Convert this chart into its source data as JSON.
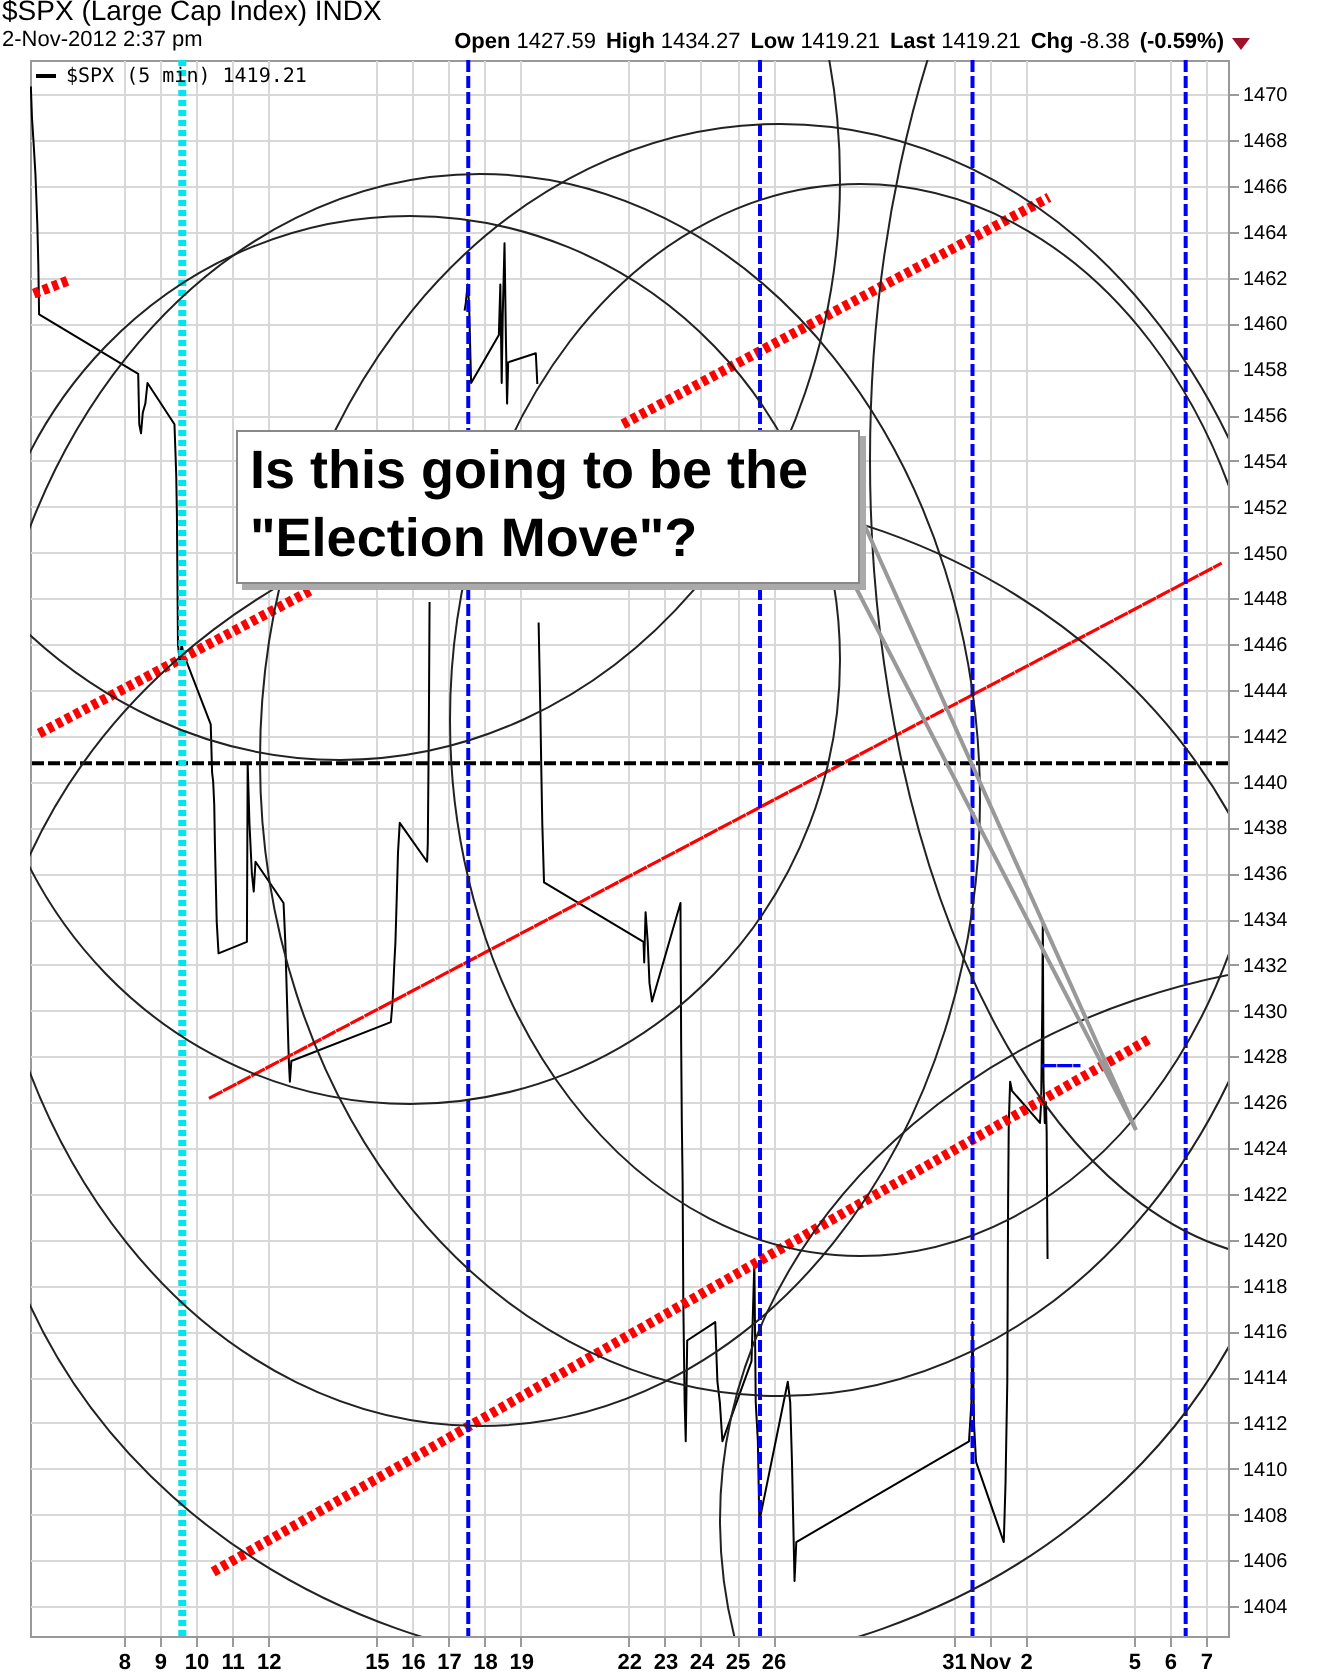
{
  "chart_data": {
    "type": "line",
    "title": "$SPX (Large Cap Index) INDX",
    "subtitle": "2-Nov-2012 2:37 pm",
    "annotations": [
      "Open 1427.59 High 1434.27 Low 1419.21 Last 1419.21 Chg -8.38 (-0.59%)",
      "Is this going to be the \"Election Move\"?"
    ],
    "xlim": [
      "2012-10-05T09:30",
      "2012-11-07T14:42"
    ],
    "xticks": [
      {
        "value": "2012-10-08",
        "label": "8"
      },
      {
        "value": "2012-10-09",
        "label": "9"
      },
      {
        "value": "2012-10-10",
        "label": "10"
      },
      {
        "value": "2012-10-11",
        "label": "11"
      },
      {
        "value": "2012-10-12",
        "label": "12"
      },
      {
        "value": "2012-10-15",
        "label": "15"
      },
      {
        "value": "2012-10-16",
        "label": "16"
      },
      {
        "value": "2012-10-17",
        "label": "17"
      },
      {
        "value": "2012-10-18",
        "label": "18"
      },
      {
        "value": "2012-10-19",
        "label": "19"
      },
      {
        "value": "2012-10-22",
        "label": "22"
      },
      {
        "value": "2012-10-23",
        "label": "23"
      },
      {
        "value": "2012-10-24",
        "label": "24"
      },
      {
        "value": "2012-10-25",
        "label": "25"
      },
      {
        "value": "2012-10-26",
        "label": "26"
      },
      {
        "value": "2012-10-31",
        "label": "31"
      },
      {
        "value": "2012-11-01",
        "label": "Nov"
      },
      {
        "value": "2012-11-02",
        "label": "2"
      },
      {
        "value": "2012-11-05",
        "label": "5"
      },
      {
        "value": "2012-11-06",
        "label": "6"
      },
      {
        "value": "2012-11-07",
        "label": "7"
      }
    ],
    "ylim": [
      1402.7,
      1471.5
    ],
    "yticks": [
      1404,
      1406,
      1408,
      1410,
      1412,
      1414,
      1416,
      1418,
      1420,
      1422,
      1424,
      1426,
      1428,
      1430,
      1432,
      1434,
      1436,
      1438,
      1440,
      1442,
      1444,
      1446,
      1448,
      1450,
      1452,
      1454,
      1456,
      1458,
      1460,
      1462,
      1464,
      1466,
      1468,
      1470
    ],
    "grid": true,
    "legend": "top left",
    "series": [
      {
        "name": "$SPX (5 min) 1419.21",
        "color": "#000000",
        "line_style": "solid",
        "x": [
          "2012-10-05T10:05",
          "2012-10-05T10:48",
          "2012-10-05T11:58",
          "2012-10-05T13:08",
          "2012-10-05T14:23",
          "2012-10-05T15:02",
          "2012-10-05T15:33",
          "2012-10-08T09:30",
          "2012-10-08T10:13",
          "2012-10-08T11:23",
          "2012-10-08T12:33",
          "2012-10-08T14:15",
          "2012-10-08T15:41",
          "2012-10-09T09:38",
          "2012-10-09T10:48",
          "2012-10-09T11:15",
          "2012-10-09T11:58",
          "2012-10-09T13:08",
          "2012-10-09T14:23",
          "2012-10-09T15:33",
          "2012-10-10T09:46",
          "2012-10-10T10:40",
          "2012-10-10T11:23",
          "2012-10-10T12:06",
          "2012-10-10T12:33",
          "2012-10-10T13:44",
          "2012-10-10T14:58",
          "2012-10-11T09:50",
          "2012-10-11T10:21",
          "2012-10-11T11:31",
          "2012-10-11T13:08",
          "2012-10-11T14:23",
          "2012-10-11T15:33",
          "2012-10-12T10:13",
          "2012-10-12T11:23",
          "2012-10-12T12:33",
          "2012-10-12T13:44",
          "2012-10-12T14:26",
          "2012-10-12T15:25",
          "2012-10-15T09:38",
          "2012-10-15T10:48",
          "2012-10-15T11:58",
          "2012-10-15T12:41",
          "2012-10-15T13:40",
          "2012-10-15T14:23",
          "2012-10-15T15:33",
          "2012-10-16T09:46",
          "2012-10-16T10:13",
          "2012-10-16T10:56",
          "2012-10-16T11:23",
          "2012-10-16T14:42",
          "2012-10-17T10:48",
          "2012-10-17T11:31",
          "2012-10-17T12:41",
          "2012-10-17T13:40",
          "2012-10-17T15:02",
          "2012-10-18T09:30",
          "2012-10-18T10:29",
          "2012-10-18T11:23",
          "2012-10-18T12:06",
          "2012-10-18T13:16",
          "2012-10-18T14:15",
          "2012-10-18T14:58",
          "2012-10-18T15:41",
          "2012-10-19T10:05",
          "2012-10-19T11:04",
          "2012-10-19T11:27",
          "2012-10-19T11:58",
          "2012-10-19T13:08",
          "2012-10-19T13:40",
          "2012-10-19T14:23",
          "2012-10-19T15:33",
          "2012-10-22T09:46",
          "2012-10-22T10:13",
          "2012-10-22T11:08",
          "2012-10-22T12:33",
          "2012-10-22T13:44",
          "2012-10-22T15:25",
          "2012-10-23T10:21",
          "2012-10-23T10:48",
          "2012-10-23T11:15",
          "2012-10-23T11:47",
          "2012-10-23T12:14",
          "2012-10-23T13:08",
          "2012-10-23T13:51",
          "2012-10-23T14:50",
          "2012-10-24T09:30",
          "2012-10-24T10:56",
          "2012-10-24T12:33",
          "2012-10-24T14:15",
          "2012-10-25T09:38",
          "2012-10-25T11:31",
          "2012-10-25T12:26",
          "2012-10-25T13:51",
          "2012-10-25T14:50",
          "2012-10-26T09:46",
          "2012-10-26T11:23",
          "2012-10-26T12:33",
          "2012-10-26T14:15",
          "2012-10-26T15:25",
          "2012-10-31T10:21",
          "2012-10-31T11:58",
          "2012-10-31T12:41",
          "2012-10-31T13:40",
          "2012-10-31T15:02",
          "2012-11-01T09:30",
          "2012-11-01T10:40",
          "2012-11-01T11:50",
          "2012-11-01T12:22",
          "2012-11-01T12:49",
          "2012-11-01T13:44",
          "2012-11-01T14:58",
          "2012-11-02T09:35",
          "2012-11-02T10:22",
          "2012-11-02T11:09",
          "2012-11-02T11:28",
          "2012-11-02T11:56",
          "2012-11-02T12:46",
          "2012-11-02T13:33",
          "2012-11-02T14:02",
          "2012-11-02T14:20",
          "2012-11-02T14:37"
        ],
        "values": [
          1470.3,
          1469,
          1467.8,
          1466.5,
          1464.3,
          1462.6,
          1460.4,
          1457.8,
          1455.6,
          1455.2,
          1456.1,
          1456.5,
          1457.4,
          1455.6,
          1453.4,
          1451.7,
          1446,
          1445.2,
          1446,
          1445.6,
          1442.5,
          1440.4,
          1440,
          1439,
          1437.3,
          1433.9,
          1432.5,
          1433,
          1440.8,
          1438.2,
          1436,
          1435.2,
          1436.5,
          1434.7,
          1433,
          1430.4,
          1427.8,
          1426.9,
          1427.8,
          1429.5,
          1430.4,
          1432.1,
          1433,
          1435.2,
          1436.9,
          1438.2,
          1436.5,
          1437.3,
          1442.6,
          1447.8,
          null,
          1460.6,
          1460.9,
          1461.7,
          1460.9,
          1457.4,
          1459.5,
          1461.7,
          1457.4,
          1460.4,
          1463.5,
          1459.1,
          1456.5,
          1458.3,
          1458.7,
          1457.4,
          null,
          1446.9,
          1443,
          1440.8,
          1438.2,
          1435.6,
          1433,
          1432.1,
          1434.3,
          1433,
          1431.2,
          1430.4,
          1434.7,
          1428.6,
          1425.1,
          1422.5,
          1417.3,
          1412.9,
          1411.2,
          1415.6,
          1416.4,
          1413.8,
          1412.9,
          1411.2,
          1414.7,
          1419,
          1412.9,
          1411.2,
          1407.7,
          1413.8,
          1412.9,
          1410.3,
          1405.1,
          1406.8,
          1411.2,
          1412.9,
          1416.4,
          1412,
          1410.3,
          1406.8,
          1409.4,
          1413.8,
          1421.6,
          1425.1,
          1426.9,
          1426.5,
          1425.1,
          1426,
          1430.4,
          1433.9,
          1426.9,
          1425.1,
          1426,
          1424.7,
          1421.6,
          1419.2
        ]
      },
      {
        "color": "#ff0000",
        "line_style": "dotted",
        "x": [
          "2012-10-05T12:00",
          "2012-10-06T12:00"
        ],
        "values": [
          1461.3,
          1461.9
        ]
      },
      {
        "color": "#ff0000",
        "line_style": "dotted",
        "x": [
          "2012-10-05T15:33",
          "2012-10-13T06:00",
          "2012-10-17T12:45",
          "2012-10-21T20:00",
          "2012-11-02T15:33"
        ],
        "values": [
          1442.1,
          1448.4,
          null,
          1455.6,
          1465.5
        ]
      },
      {
        "color": "#ff0000",
        "line_style": "dotted",
        "x": [
          "2012-10-10T11:23",
          "2012-11-05T11:23"
        ],
        "values": [
          1405.5,
          1428.8
        ]
      },
      {
        "color": "#ff0000",
        "line_style": "dashed",
        "x": [
          "2012-10-10T09:30",
          "2012-11-07T09:30"
        ],
        "values": [
          1426.2,
          1449.5
        ]
      },
      {
        "color": "#0000ff",
        "line_style": "dashed",
        "x": [
          "2012-11-02T11:28",
          "2012-11-03T11:28"
        ],
        "values": [
          1427.6,
          1427.6
        ]
      }
    ],
    "ref_lines": [
      {
        "axis": "y",
        "value": 1440.8,
        "color": "#000000",
        "line_style": "dashed"
      },
      {
        "axis": "x",
        "value": "2012-10-09T14:50",
        "color": "#00e5ee",
        "line_style": "dotted"
      },
      {
        "axis": "x",
        "value": "2012-10-17T13:08",
        "color": "#0000ff",
        "line_style": "dashed"
      },
      {
        "axis": "x",
        "value": "2012-10-25T15:17",
        "color": "#0000ff",
        "line_style": "dashed"
      },
      {
        "axis": "x",
        "value": "2012-10-31T12:41",
        "color": "#0000ff",
        "line_style": "dashed"
      },
      {
        "axis": "x",
        "value": "2012-11-06T10:32",
        "color": "#0000ff",
        "line_style": "dashed"
      }
    ]
  }
}
